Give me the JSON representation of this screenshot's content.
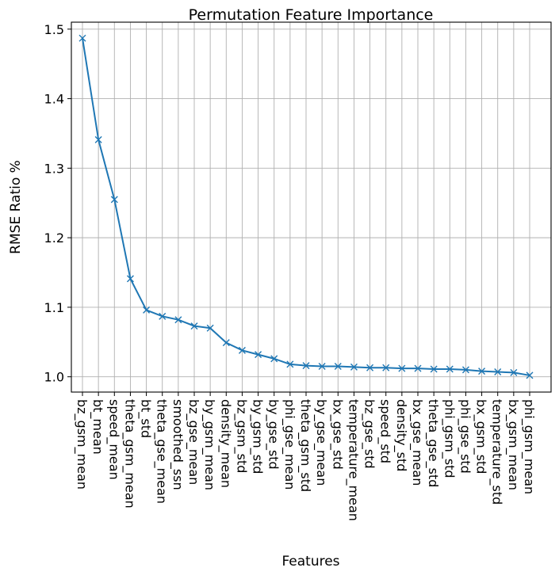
{
  "chart_data": {
    "type": "line",
    "title": "Permutation Feature Importance",
    "xlabel": "Features",
    "ylabel": "RMSE Ratio %",
    "ylim": [
      0.978,
      1.51
    ],
    "yticks": [
      1.0,
      1.1,
      1.2,
      1.3,
      1.4,
      1.5
    ],
    "ytick_labels": [
      "1.0",
      "1.1",
      "1.2",
      "1.3",
      "1.4",
      "1.5"
    ],
    "grid": true,
    "marker": "x",
    "line_color": "#1f77b4",
    "categories": [
      "bz_gsm_mean",
      "bt_mean",
      "speed_mean",
      "theta_gsm_mean",
      "bt_std",
      "theta_gse_mean",
      "smoothed_ssn",
      "bz_gse_mean",
      "by_gsm_mean",
      "density_mean",
      "bz_gsm_std",
      "by_gsm_std",
      "by_gse_std",
      "phi_gse_mean",
      "theta_gsm_std",
      "by_gse_mean",
      "bx_gse_std",
      "temperature_mean",
      "bz_gse_std",
      "speed_std",
      "density_std",
      "bx_gse_mean",
      "theta_gse_std",
      "phi_gsm_std",
      "phi_gse_std",
      "bx_gsm_std",
      "temperature_std",
      "bx_gsm_mean",
      "phi_gsm_mean"
    ],
    "values": [
      1.487,
      1.341,
      1.255,
      1.141,
      1.096,
      1.087,
      1.082,
      1.073,
      1.07,
      1.049,
      1.038,
      1.032,
      1.026,
      1.018,
      1.016,
      1.015,
      1.015,
      1.014,
      1.013,
      1.013,
      1.012,
      1.012,
      1.011,
      1.011,
      1.01,
      1.008,
      1.007,
      1.006,
      1.002
    ]
  }
}
